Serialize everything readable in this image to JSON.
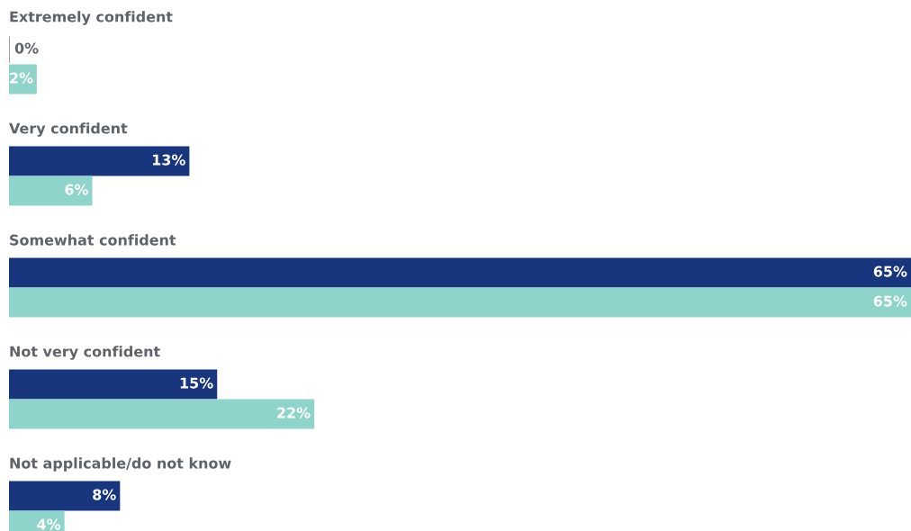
{
  "chart_data": {
    "type": "bar",
    "orientation": "horizontal",
    "categories": [
      "Extremely confident",
      "Very confident",
      "Somewhat confident",
      "Not very confident",
      "Not applicable/do not know"
    ],
    "series": [
      {
        "color": "#17367d",
        "values": [
          0,
          13,
          65,
          15,
          8
        ],
        "value_labels": [
          "0%",
          "13%",
          "65%",
          "15%",
          "8%"
        ]
      },
      {
        "color": "#8fd4cb",
        "values": [
          2,
          6,
          65,
          22,
          4
        ],
        "value_labels": [
          "2%",
          "6%",
          "65%",
          "22%",
          "4%"
        ]
      }
    ]
  }
}
